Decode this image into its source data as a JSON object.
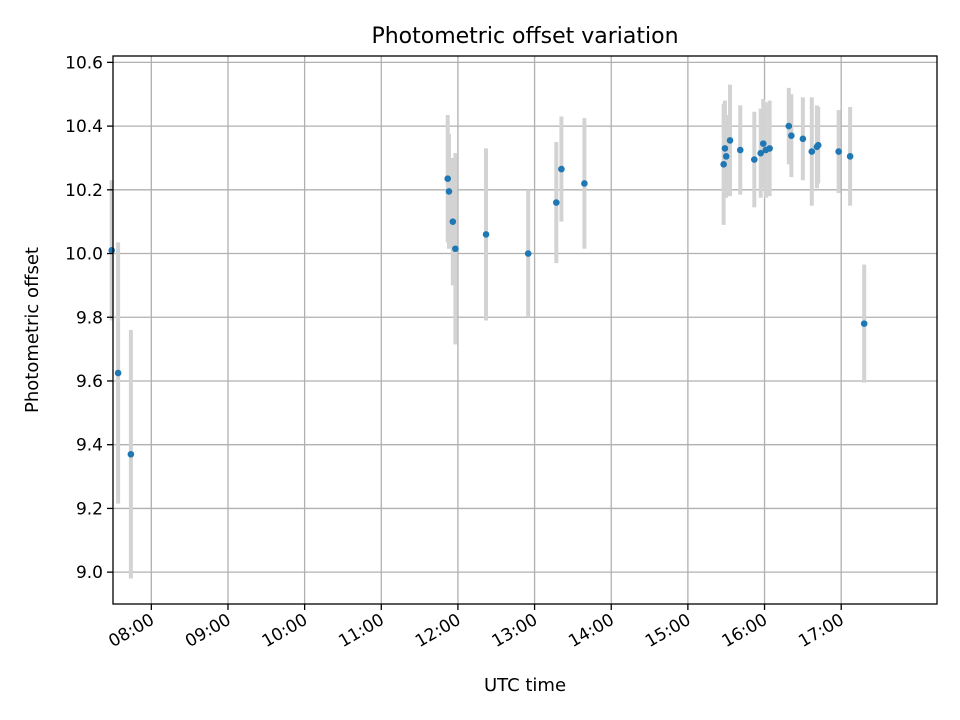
{
  "chart_data": {
    "type": "scatter",
    "title": "Photometric offset variation",
    "xlabel": "UTC time",
    "ylabel": "Photometric offset",
    "xlim": [
      "07:30",
      "18:15"
    ],
    "ylim": [
      8.9,
      10.62
    ],
    "x_ticks": [
      "08:00",
      "09:00",
      "10:00",
      "11:00",
      "12:00",
      "13:00",
      "14:00",
      "15:00",
      "16:00",
      "17:00"
    ],
    "y_ticks": [
      "9.0",
      "9.2",
      "9.4",
      "9.6",
      "9.8",
      "10.0",
      "10.2",
      "10.4",
      "10.6"
    ],
    "grid": true,
    "marker_color": "#1f77b4",
    "errorbar_color": "#d3d3d3",
    "points": [
      {
        "x": "07:29",
        "y": 10.01,
        "err": 0.22
      },
      {
        "x": "07:34",
        "y": 9.625,
        "err": 0.41
      },
      {
        "x": "07:44",
        "y": 9.37,
        "err": 0.39
      },
      {
        "x": "11:52",
        "y": 10.235,
        "err": 0.2
      },
      {
        "x": "11:53",
        "y": 10.195,
        "err": 0.18
      },
      {
        "x": "11:56",
        "y": 10.1,
        "err": 0.2
      },
      {
        "x": "11:58",
        "y": 10.015,
        "err": 0.3
      },
      {
        "x": "12:22",
        "y": 10.06,
        "err": 0.27
      },
      {
        "x": "12:55",
        "y": 10.0,
        "err": 0.2
      },
      {
        "x": "13:17",
        "y": 10.16,
        "err": 0.19
      },
      {
        "x": "13:21",
        "y": 10.265,
        "err": 0.165
      },
      {
        "x": "13:39",
        "y": 10.22,
        "err": 0.205
      },
      {
        "x": "15:28",
        "y": 10.28,
        "err": 0.19
      },
      {
        "x": "15:29",
        "y": 10.33,
        "err": 0.15
      },
      {
        "x": "15:30",
        "y": 10.305,
        "err": 0.13
      },
      {
        "x": "15:33",
        "y": 10.355,
        "err": 0.175
      },
      {
        "x": "15:41",
        "y": 10.325,
        "err": 0.14
      },
      {
        "x": "15:52",
        "y": 10.295,
        "err": 0.15
      },
      {
        "x": "15:57",
        "y": 10.315,
        "err": 0.14
      },
      {
        "x": "15:59",
        "y": 10.345,
        "err": 0.14
      },
      {
        "x": "16:01",
        "y": 10.325,
        "err": 0.15
      },
      {
        "x": "16:04",
        "y": 10.33,
        "err": 0.15
      },
      {
        "x": "16:19",
        "y": 10.4,
        "err": 0.12
      },
      {
        "x": "16:21",
        "y": 10.37,
        "err": 0.13
      },
      {
        "x": "16:30",
        "y": 10.36,
        "err": 0.13
      },
      {
        "x": "16:37",
        "y": 10.32,
        "err": 0.17
      },
      {
        "x": "16:41",
        "y": 10.335,
        "err": 0.13
      },
      {
        "x": "16:42",
        "y": 10.34,
        "err": 0.12
      },
      {
        "x": "16:58",
        "y": 10.32,
        "err": 0.13
      },
      {
        "x": "17:07",
        "y": 10.305,
        "err": 0.155
      },
      {
        "x": "17:18",
        "y": 9.78,
        "err": 0.185
      }
    ]
  }
}
